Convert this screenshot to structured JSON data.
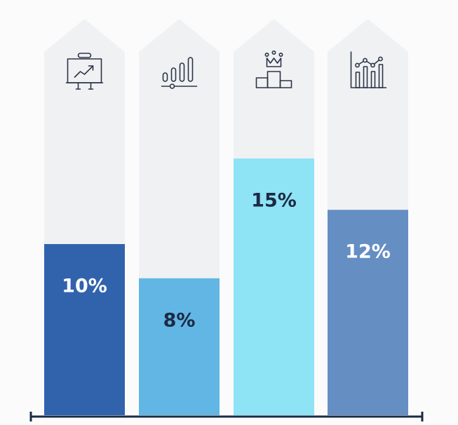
{
  "chart_data": {
    "type": "bar",
    "categories": [
      "",
      "",
      "",
      ""
    ],
    "values": [
      10,
      8,
      15,
      12
    ],
    "labels": [
      "10%",
      "8%",
      "15%",
      "12%"
    ],
    "unit": "%",
    "ylim": [
      0,
      18
    ],
    "grid": false,
    "legend": "none",
    "icons": [
      "presentation-board-icon",
      "signal-bars-icon",
      "podium-crown-icon",
      "line-bar-chart-icon"
    ],
    "colors": {
      "bars": [
        "#3163ad",
        "#62b6e4",
        "#8ee3f5",
        "#658fc3"
      ],
      "label_text": [
        "#ffffff",
        "#1b2a44",
        "#1b2a44",
        "#ffffff"
      ],
      "arrow_bg": "#f0f1f3",
      "axis": "#1b2a44",
      "icon": "#2b3548"
    }
  }
}
